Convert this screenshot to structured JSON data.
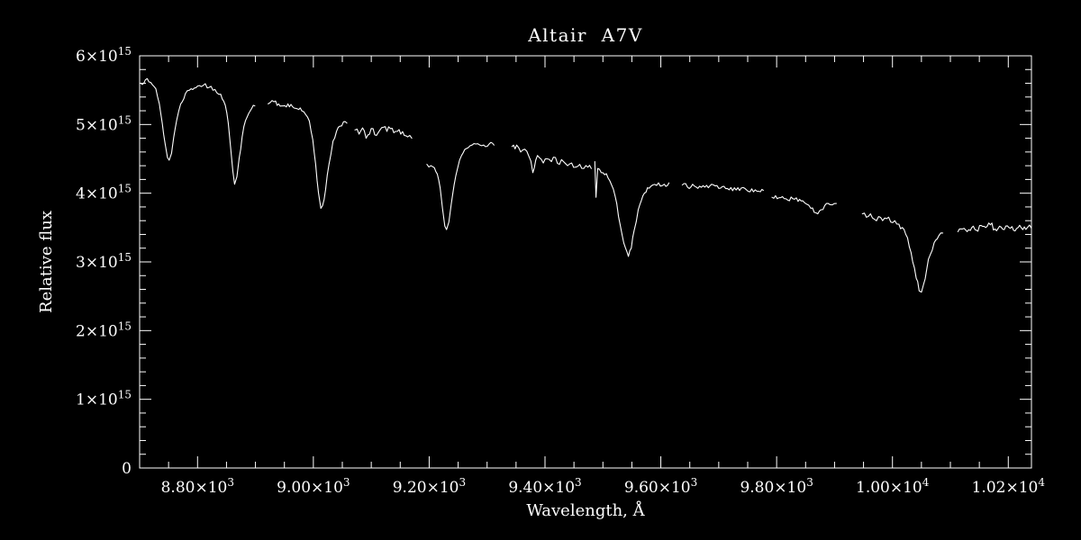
{
  "chart_data": {
    "type": "line",
    "title": "Altair  A7V",
    "xlabel": "Wavelength, Å",
    "ylabel": "Relative flux",
    "xlim": [
      8700,
      10240
    ],
    "ylim": [
      0,
      6
    ],
    "y_values_unit": "1e15",
    "background": "#000000",
    "line_color": "#ffffff",
    "axis_color": "#ffffff",
    "legend": "none",
    "grid": false,
    "x_major_ticks": [
      {
        "v": 8800,
        "base": "8.80×10",
        "sup": "3"
      },
      {
        "v": 9000,
        "base": "9.00×10",
        "sup": "3"
      },
      {
        "v": 9200,
        "base": "9.20×10",
        "sup": "3"
      },
      {
        "v": 9400,
        "base": "9.40×10",
        "sup": "3"
      },
      {
        "v": 9600,
        "base": "9.60×10",
        "sup": "3"
      },
      {
        "v": 9800,
        "base": "9.80×10",
        "sup": "3"
      },
      {
        "v": 10000,
        "base": "1.00×10",
        "sup": "4"
      },
      {
        "v": 10200,
        "base": "1.02×10",
        "sup": "4"
      }
    ],
    "x_minor_step": 50,
    "y_major_ticks": [
      {
        "v": 0,
        "base": "0",
        "sup": ""
      },
      {
        "v": 1,
        "base": "1×10",
        "sup": "15"
      },
      {
        "v": 2,
        "base": "2×10",
        "sup": "15"
      },
      {
        "v": 3,
        "base": "3×10",
        "sup": "15"
      },
      {
        "v": 4,
        "base": "4×10",
        "sup": "15"
      },
      {
        "v": 5,
        "base": "5×10",
        "sup": "15"
      },
      {
        "v": 6,
        "base": "6×10",
        "sup": "15"
      }
    ],
    "y_minor_step": 0.2,
    "noise_seed": 7,
    "segments": [
      {
        "noise": 0.035,
        "points": [
          [
            8702,
            5.6
          ],
          [
            8710,
            5.65
          ],
          [
            8716,
            5.62
          ],
          [
            8722,
            5.58
          ],
          [
            8728,
            5.52
          ],
          [
            8734,
            5.3
          ],
          [
            8739,
            5.02
          ],
          [
            8744,
            4.72
          ],
          [
            8748,
            4.52
          ],
          [
            8751,
            4.48
          ],
          [
            8755,
            4.58
          ],
          [
            8759,
            4.82
          ],
          [
            8764,
            5.06
          ],
          [
            8771,
            5.3
          ],
          [
            8779,
            5.45
          ],
          [
            8789,
            5.52
          ],
          [
            8800,
            5.56
          ],
          [
            8810,
            5.57
          ],
          [
            8820,
            5.54
          ],
          [
            8830,
            5.51
          ],
          [
            8840,
            5.44
          ],
          [
            8848,
            5.28
          ],
          [
            8853,
            5.02
          ],
          [
            8857,
            4.68
          ],
          [
            8861,
            4.32
          ],
          [
            8864,
            4.13
          ],
          [
            8868,
            4.24
          ],
          [
            8872,
            4.52
          ],
          [
            8877,
            4.82
          ],
          [
            8883,
            5.06
          ],
          [
            8891,
            5.2
          ],
          [
            8899,
            5.27
          ]
        ]
      },
      {
        "noise": 0.035,
        "points": [
          [
            8922,
            5.3
          ],
          [
            8932,
            5.33
          ],
          [
            8940,
            5.3
          ],
          [
            8948,
            5.27
          ],
          [
            8956,
            5.3
          ],
          [
            8964,
            5.26
          ],
          [
            8972,
            5.23
          ],
          [
            8980,
            5.2
          ],
          [
            8987,
            5.14
          ],
          [
            8993,
            5.05
          ],
          [
            8999,
            4.78
          ],
          [
            9004,
            4.42
          ],
          [
            9009,
            4.0
          ],
          [
            9013,
            3.78
          ],
          [
            9016,
            3.82
          ],
          [
            9021,
            4.05
          ],
          [
            9027,
            4.42
          ],
          [
            9034,
            4.76
          ],
          [
            9043,
            4.96
          ],
          [
            9052,
            5.04
          ],
          [
            9058,
            5.02
          ]
        ]
      },
      {
        "noise": 0.05,
        "points": [
          [
            9072,
            4.92
          ],
          [
            9079,
            4.86
          ],
          [
            9085,
            4.95
          ],
          [
            9091,
            4.8
          ],
          [
            9097,
            4.86
          ],
          [
            9103,
            4.94
          ],
          [
            9109,
            4.84
          ],
          [
            9115,
            4.92
          ],
          [
            9121,
            4.96
          ],
          [
            9127,
            4.9
          ],
          [
            9133,
            4.94
          ],
          [
            9139,
            4.88
          ],
          [
            9145,
            4.9
          ],
          [
            9151,
            4.86
          ],
          [
            9157,
            4.84
          ],
          [
            9163,
            4.82
          ],
          [
            9170,
            4.8
          ]
        ]
      },
      {
        "noise": 0.03,
        "points": [
          [
            9196,
            4.42
          ],
          [
            9203,
            4.4
          ],
          [
            9209,
            4.37
          ],
          [
            9214,
            4.28
          ],
          [
            9219,
            4.08
          ],
          [
            9223,
            3.78
          ],
          [
            9227,
            3.52
          ],
          [
            9230,
            3.47
          ],
          [
            9234,
            3.58
          ],
          [
            9238,
            3.84
          ],
          [
            9243,
            4.12
          ],
          [
            9249,
            4.36
          ],
          [
            9256,
            4.55
          ],
          [
            9264,
            4.65
          ],
          [
            9274,
            4.7
          ],
          [
            9284,
            4.72
          ],
          [
            9294,
            4.7
          ],
          [
            9304,
            4.72
          ],
          [
            9312,
            4.7
          ]
        ]
      },
      {
        "noise": 0.05,
        "points": [
          [
            9343,
            4.68
          ],
          [
            9351,
            4.7
          ],
          [
            9358,
            4.6
          ],
          [
            9365,
            4.64
          ],
          [
            9372,
            4.54
          ],
          [
            9379,
            4.3
          ],
          [
            9384,
            4.48
          ],
          [
            9390,
            4.52
          ],
          [
            9397,
            4.44
          ],
          [
            9404,
            4.5
          ],
          [
            9411,
            4.46
          ],
          [
            9418,
            4.52
          ],
          [
            9425,
            4.42
          ],
          [
            9432,
            4.46
          ],
          [
            9439,
            4.4
          ],
          [
            9446,
            4.44
          ],
          [
            9453,
            4.38
          ],
          [
            9460,
            4.42
          ],
          [
            9467,
            4.36
          ],
          [
            9474,
            4.38
          ],
          [
            9480,
            4.36
          ]
        ]
      },
      {
        "noise": 0.04,
        "points": [
          [
            9486,
            4.46
          ],
          [
            9488,
            3.94
          ],
          [
            9491,
            4.36
          ],
          [
            9497,
            4.3
          ],
          [
            9503,
            4.27
          ],
          [
            9509,
            4.22
          ],
          [
            9515,
            4.12
          ],
          [
            9521,
            3.96
          ],
          [
            9527,
            3.66
          ],
          [
            9533,
            3.4
          ],
          [
            9539,
            3.2
          ],
          [
            9544,
            3.08
          ],
          [
            9549,
            3.2
          ],
          [
            9554,
            3.46
          ],
          [
            9561,
            3.76
          ],
          [
            9569,
            3.96
          ],
          [
            9577,
            4.08
          ],
          [
            9586,
            4.12
          ],
          [
            9596,
            4.15
          ],
          [
            9606,
            4.13
          ],
          [
            9614,
            4.15
          ]
        ]
      },
      {
        "noise": 0.04,
        "points": [
          [
            9637,
            4.12
          ],
          [
            9646,
            4.09
          ],
          [
            9655,
            4.13
          ],
          [
            9664,
            4.07
          ],
          [
            9673,
            4.11
          ],
          [
            9682,
            4.08
          ],
          [
            9691,
            4.12
          ],
          [
            9700,
            4.07
          ],
          [
            9709,
            4.1
          ],
          [
            9718,
            4.05
          ],
          [
            9727,
            4.08
          ],
          [
            9736,
            4.04
          ],
          [
            9745,
            4.07
          ],
          [
            9754,
            4.02
          ],
          [
            9763,
            4.05
          ],
          [
            9772,
            4.02
          ],
          [
            9777,
            4.04
          ]
        ]
      },
      {
        "noise": 0.04,
        "points": [
          [
            9792,
            3.94
          ],
          [
            9801,
            3.92
          ],
          [
            9810,
            3.95
          ],
          [
            9819,
            3.9
          ],
          [
            9828,
            3.92
          ],
          [
            9837,
            3.88
          ],
          [
            9845,
            3.89
          ],
          [
            9852,
            3.84
          ],
          [
            9859,
            3.78
          ],
          [
            9865,
            3.72
          ],
          [
            9871,
            3.7
          ],
          [
            9877,
            3.76
          ],
          [
            9883,
            3.82
          ],
          [
            9889,
            3.85
          ],
          [
            9896,
            3.83
          ],
          [
            9903,
            3.85
          ]
        ]
      },
      {
        "noise": 0.05,
        "points": [
          [
            9948,
            3.7
          ],
          [
            9955,
            3.65
          ],
          [
            9962,
            3.7
          ],
          [
            9969,
            3.62
          ],
          [
            9976,
            3.66
          ],
          [
            9983,
            3.6
          ],
          [
            9990,
            3.63
          ],
          [
            9997,
            3.58
          ],
          [
            10004,
            3.6
          ],
          [
            10011,
            3.55
          ],
          [
            10017,
            3.5
          ],
          [
            10023,
            3.4
          ],
          [
            10029,
            3.22
          ],
          [
            10035,
            3.0
          ],
          [
            10041,
            2.76
          ],
          [
            10046,
            2.58
          ],
          [
            10050,
            2.56
          ],
          [
            10054,
            2.68
          ],
          [
            10059,
            2.88
          ],
          [
            10065,
            3.1
          ],
          [
            10072,
            3.28
          ],
          [
            10080,
            3.38
          ],
          [
            10087,
            3.42
          ]
        ]
      },
      {
        "noise": 0.05,
        "points": [
          [
            10113,
            3.44
          ],
          [
            10121,
            3.48
          ],
          [
            10129,
            3.44
          ],
          [
            10137,
            3.5
          ],
          [
            10145,
            3.46
          ],
          [
            10153,
            3.53
          ],
          [
            10161,
            3.5
          ],
          [
            10169,
            3.54
          ],
          [
            10177,
            3.48
          ],
          [
            10185,
            3.52
          ],
          [
            10193,
            3.47
          ],
          [
            10201,
            3.5
          ],
          [
            10209,
            3.46
          ],
          [
            10217,
            3.5
          ],
          [
            10225,
            3.47
          ],
          [
            10233,
            3.5
          ],
          [
            10240,
            3.49
          ]
        ]
      }
    ]
  }
}
